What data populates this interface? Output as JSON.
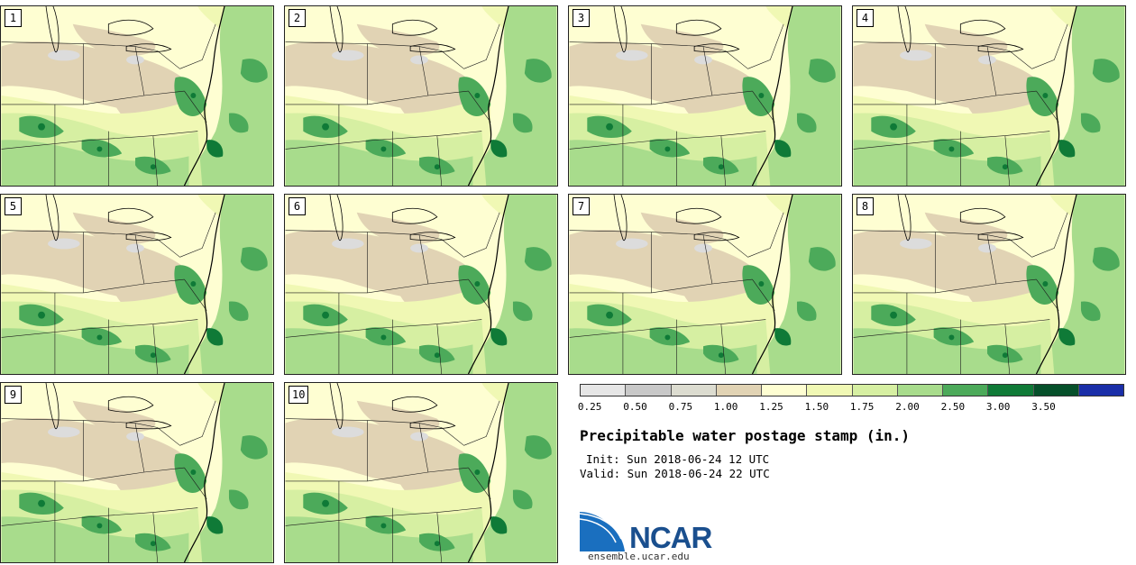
{
  "stamps": [
    {
      "label": "1"
    },
    {
      "label": "2"
    },
    {
      "label": "3"
    },
    {
      "label": "4"
    },
    {
      "label": "5"
    },
    {
      "label": "6"
    },
    {
      "label": "7"
    },
    {
      "label": "8"
    },
    {
      "label": "9"
    },
    {
      "label": "10"
    }
  ],
  "legend": {
    "ticks": [
      "0.25",
      "0.50",
      "0.75",
      "1.00",
      "1.25",
      "1.50",
      "1.75",
      "2.00",
      "2.50",
      "3.00",
      "3.50"
    ],
    "colors": [
      "#e6e6e6",
      "#c8c8c8",
      "#dcdcd0",
      "#e1d3b4",
      "#fefed2",
      "#f0f8b4",
      "#d6efa2",
      "#a8dc8c",
      "#4caa5a",
      "#0f7a37",
      "#06502a",
      "#1a2ea8"
    ]
  },
  "title": "Precipitable water postage stamp (in.)",
  "init": "Init: Sun 2018-06-24 12 UTC",
  "valid": "Valid: Sun 2018-06-24 22 UTC",
  "logo": {
    "name": "NCAR",
    "url": "ensemble.ucar.edu"
  }
}
